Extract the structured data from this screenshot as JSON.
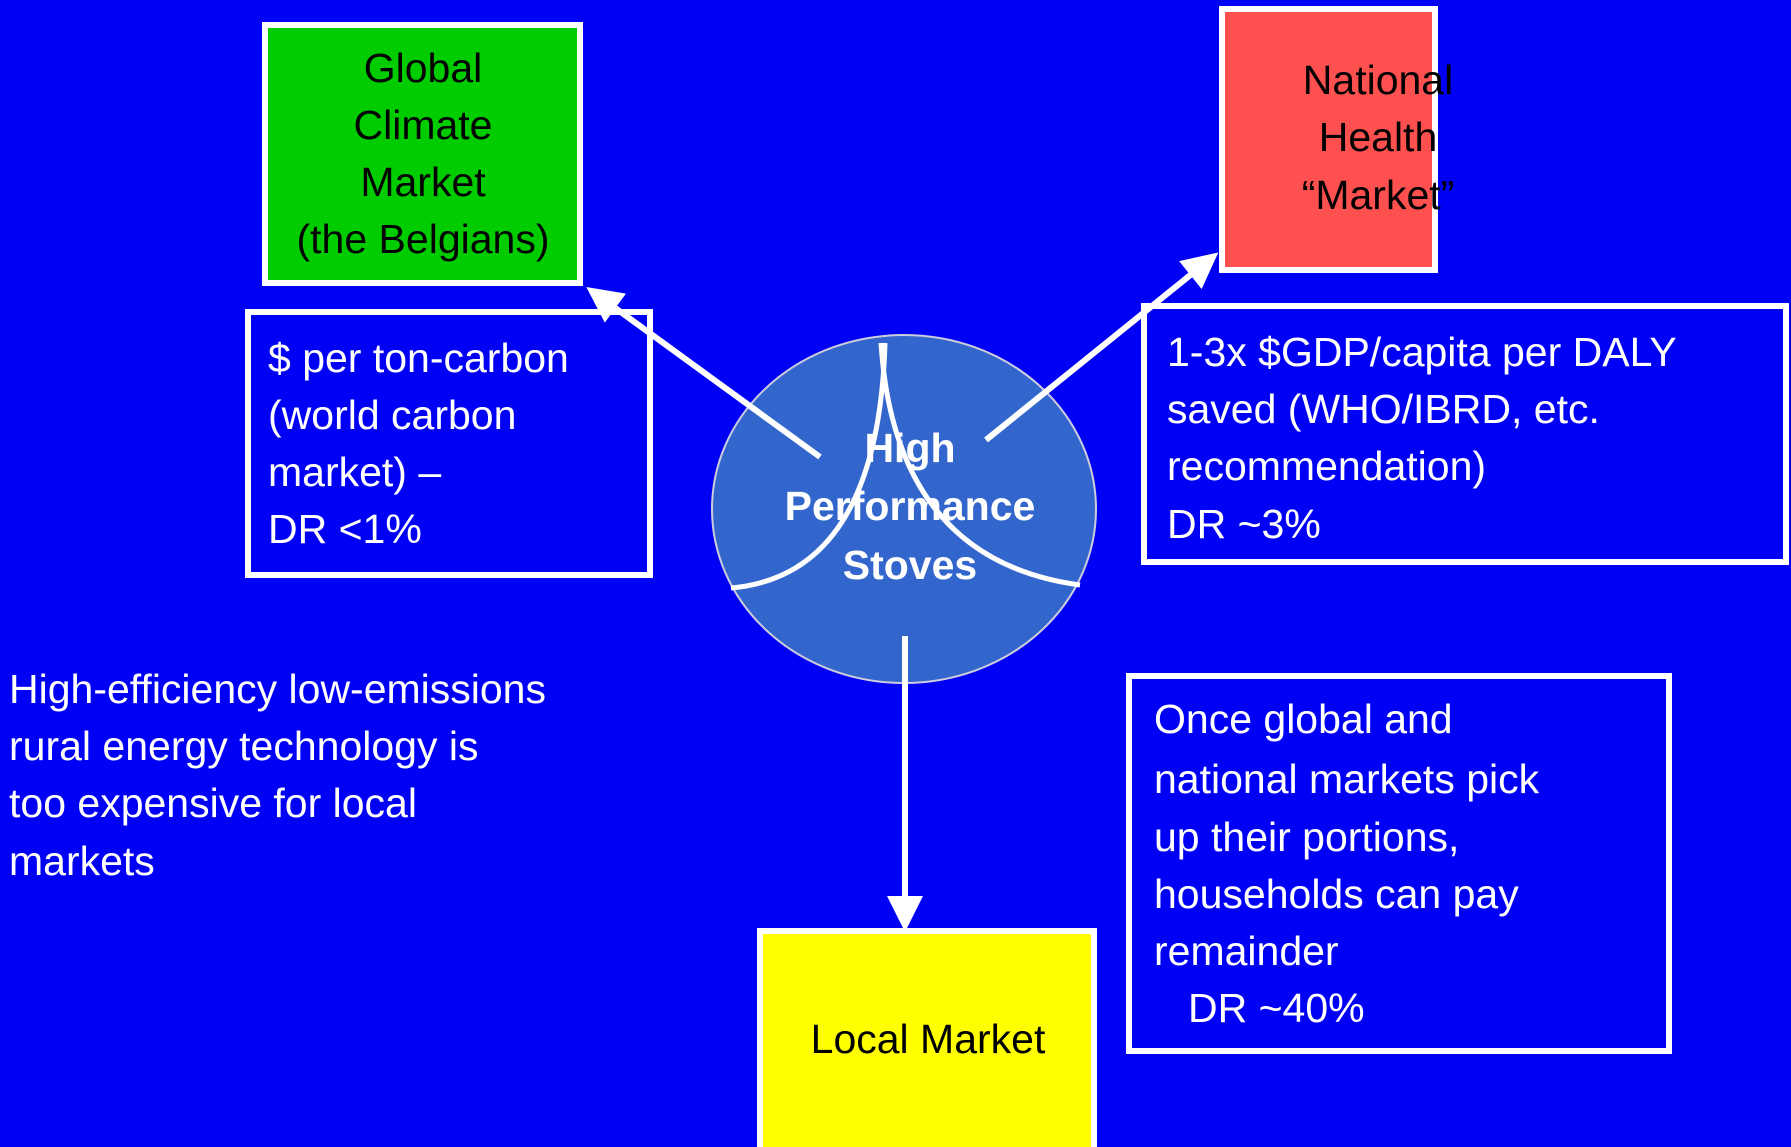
{
  "nodes": {
    "global": {
      "lines": [
        "Global",
        "Climate",
        "Market",
        "(the Belgians)"
      ]
    },
    "health": {
      "lines": [
        "National",
        "Health",
        "“Market”"
      ]
    },
    "stoves": {
      "lines": [
        "High",
        "Performance",
        "Stoves"
      ]
    },
    "local": {
      "lines": [
        "Local Market"
      ]
    }
  },
  "notes": {
    "carbon": {
      "lines": [
        "$ per ton-carbon",
        "(world carbon",
        "market) –",
        "DR <1%"
      ]
    },
    "daly": {
      "lines": [
        "1-3x $GDP/capita per DALY",
        "saved (WHO/IBRD, etc.",
        "recommendation)",
        "DR ~3%"
      ]
    },
    "expensive": {
      "lines": [
        "High-efficiency low-emissions",
        "rural energy technology is",
        "too expensive for local",
        "markets"
      ]
    },
    "households": {
      "lines": [
        "Once global and",
        "national markets pick",
        "up their portions,",
        "households can pay",
        "remainder",
        "DR ~40%"
      ]
    }
  }
}
